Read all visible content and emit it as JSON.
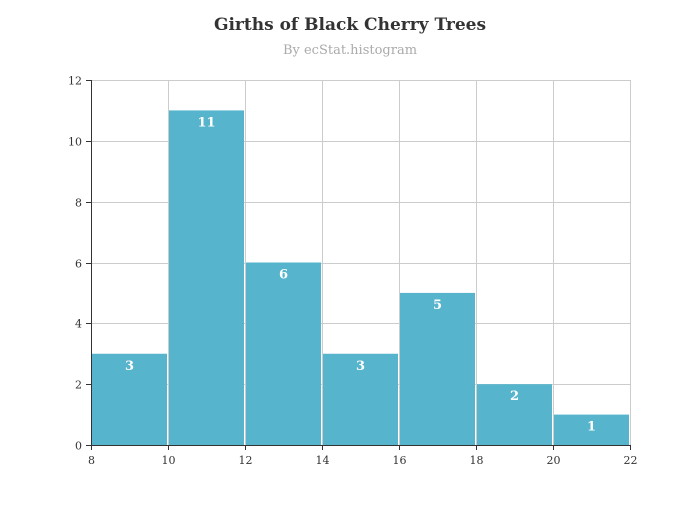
{
  "chart_data": {
    "type": "bar",
    "title": "Girths of Black Cherry Trees",
    "subtitle": "By ecStat.histogram",
    "bins": [
      {
        "x0": 8,
        "x1": 10,
        "value": 3
      },
      {
        "x0": 10,
        "x1": 12,
        "value": 11
      },
      {
        "x0": 12,
        "x1": 14,
        "value": 6
      },
      {
        "x0": 14,
        "x1": 16,
        "value": 3
      },
      {
        "x0": 16,
        "x1": 18,
        "value": 5
      },
      {
        "x0": 18,
        "x1": 20,
        "value": 2
      },
      {
        "x0": 20,
        "x1": 22,
        "value": 1
      }
    ],
    "xlim": [
      8,
      22
    ],
    "ylim": [
      0,
      12
    ],
    "xticks": [
      8,
      10,
      12,
      14,
      16,
      18,
      20,
      22
    ],
    "yticks": [
      0,
      2,
      4,
      6,
      8,
      10,
      12
    ],
    "grid": true,
    "bar_color": "#56b4cd",
    "bar_label_color": "#ffffff"
  }
}
